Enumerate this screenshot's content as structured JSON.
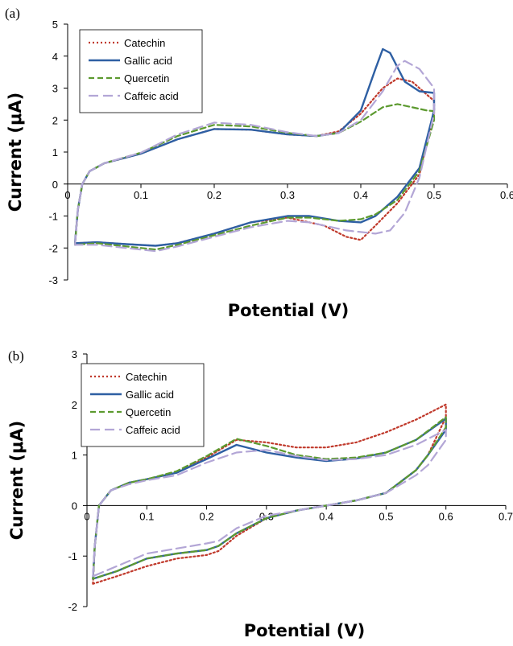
{
  "legend_items": [
    "Catechin",
    "Gallic acid",
    "Quercetin",
    "Caffeic acid"
  ],
  "styles": {
    "Catechin": {
      "color": "#c0392b",
      "dash": "2,3",
      "width": 2.2
    },
    "Gallic acid": {
      "color": "#2e5fa3",
      "dash": "",
      "width": 2.4
    },
    "Quercetin": {
      "color": "#5c9a2f",
      "dash": "7,4",
      "width": 2.2
    },
    "Caffeic acid": {
      "color": "#b3a6d6",
      "dash": "12,6",
      "width": 2.2
    }
  },
  "chart_data": [
    {
      "type": "line",
      "panel_label": "(a)",
      "xlabel": "Potential (V)",
      "ylabel": "Current (μA)",
      "xlim": [
        0,
        0.6
      ],
      "ylim": [
        -3,
        5
      ],
      "x_ticks": [
        "0",
        "0.1",
        "0.2",
        "0.3",
        "0.4",
        "0.5",
        "0.6"
      ],
      "y_ticks": [
        "-3",
        "-2",
        "-1",
        "0",
        "1",
        "2",
        "3",
        "4",
        "5"
      ],
      "legend_position": "top-left",
      "series": [
        {
          "name": "Catechin",
          "points": [
            [
              0.01,
              -1.85
            ],
            [
              0.014,
              -0.8
            ],
            [
              0.02,
              0
            ],
            [
              0.03,
              0.4
            ],
            [
              0.05,
              0.65
            ],
            [
              0.1,
              0.95
            ],
            [
              0.15,
              1.4
            ],
            [
              0.2,
              1.72
            ],
            [
              0.25,
              1.7
            ],
            [
              0.3,
              1.55
            ],
            [
              0.34,
              1.5
            ],
            [
              0.37,
              1.65
            ],
            [
              0.4,
              2.2
            ],
            [
              0.43,
              3.0
            ],
            [
              0.45,
              3.3
            ],
            [
              0.47,
              3.2
            ],
            [
              0.49,
              2.8
            ],
            [
              0.5,
              2.6
            ],
            [
              0.5,
              2.2
            ],
            [
              0.48,
              0.3
            ],
            [
              0.45,
              -0.6
            ],
            [
              0.42,
              -1.3
            ],
            [
              0.4,
              -1.75
            ],
            [
              0.38,
              -1.65
            ],
            [
              0.35,
              -1.3
            ],
            [
              0.3,
              -1.05
            ],
            [
              0.25,
              -1.2
            ],
            [
              0.2,
              -1.55
            ],
            [
              0.15,
              -1.85
            ],
            [
              0.12,
              -1.93
            ],
            [
              0.08,
              -1.88
            ],
            [
              0.04,
              -1.82
            ],
            [
              0.01,
              -1.85
            ]
          ]
        },
        {
          "name": "Gallic acid",
          "points": [
            [
              0.01,
              -1.85
            ],
            [
              0.014,
              -0.8
            ],
            [
              0.02,
              0
            ],
            [
              0.03,
              0.4
            ],
            [
              0.05,
              0.65
            ],
            [
              0.1,
              0.95
            ],
            [
              0.15,
              1.4
            ],
            [
              0.2,
              1.72
            ],
            [
              0.25,
              1.7
            ],
            [
              0.3,
              1.55
            ],
            [
              0.34,
              1.5
            ],
            [
              0.37,
              1.6
            ],
            [
              0.4,
              2.3
            ],
            [
              0.42,
              3.6
            ],
            [
              0.43,
              4.22
            ],
            [
              0.44,
              4.1
            ],
            [
              0.46,
              3.2
            ],
            [
              0.48,
              2.9
            ],
            [
              0.5,
              2.85
            ],
            [
              0.5,
              2.3
            ],
            [
              0.48,
              0.5
            ],
            [
              0.45,
              -0.4
            ],
            [
              0.42,
              -1.0
            ],
            [
              0.4,
              -1.2
            ],
            [
              0.37,
              -1.15
            ],
            [
              0.33,
              -1.0
            ],
            [
              0.3,
              -1.0
            ],
            [
              0.25,
              -1.2
            ],
            [
              0.2,
              -1.55
            ],
            [
              0.15,
              -1.85
            ],
            [
              0.12,
              -1.93
            ],
            [
              0.08,
              -1.88
            ],
            [
              0.04,
              -1.82
            ],
            [
              0.01,
              -1.85
            ]
          ]
        },
        {
          "name": "Quercetin",
          "points": [
            [
              0.01,
              -1.9
            ],
            [
              0.014,
              -0.8
            ],
            [
              0.02,
              0
            ],
            [
              0.03,
              0.4
            ],
            [
              0.05,
              0.65
            ],
            [
              0.1,
              0.98
            ],
            [
              0.15,
              1.5
            ],
            [
              0.2,
              1.85
            ],
            [
              0.25,
              1.8
            ],
            [
              0.3,
              1.6
            ],
            [
              0.34,
              1.5
            ],
            [
              0.37,
              1.6
            ],
            [
              0.4,
              1.95
            ],
            [
              0.43,
              2.4
            ],
            [
              0.45,
              2.5
            ],
            [
              0.47,
              2.4
            ],
            [
              0.49,
              2.3
            ],
            [
              0.5,
              2.28
            ],
            [
              0.5,
              2.0
            ],
            [
              0.48,
              0.4
            ],
            [
              0.45,
              -0.5
            ],
            [
              0.42,
              -0.95
            ],
            [
              0.4,
              -1.1
            ],
            [
              0.37,
              -1.15
            ],
            [
              0.33,
              -1.05
            ],
            [
              0.3,
              -1.05
            ],
            [
              0.25,
              -1.3
            ],
            [
              0.2,
              -1.6
            ],
            [
              0.15,
              -1.9
            ],
            [
              0.12,
              -2.05
            ],
            [
              0.08,
              -1.95
            ],
            [
              0.04,
              -1.85
            ],
            [
              0.01,
              -1.9
            ]
          ]
        },
        {
          "name": "Caffeic acid",
          "points": [
            [
              0.01,
              -1.9
            ],
            [
              0.014,
              -0.8
            ],
            [
              0.02,
              0
            ],
            [
              0.03,
              0.4
            ],
            [
              0.05,
              0.65
            ],
            [
              0.1,
              0.98
            ],
            [
              0.15,
              1.55
            ],
            [
              0.2,
              1.92
            ],
            [
              0.25,
              1.85
            ],
            [
              0.3,
              1.62
            ],
            [
              0.34,
              1.5
            ],
            [
              0.37,
              1.6
            ],
            [
              0.4,
              2.0
            ],
            [
              0.43,
              2.9
            ],
            [
              0.45,
              3.7
            ],
            [
              0.46,
              3.85
            ],
            [
              0.48,
              3.6
            ],
            [
              0.5,
              3.0
            ],
            [
              0.5,
              2.2
            ],
            [
              0.48,
              0.2
            ],
            [
              0.46,
              -0.9
            ],
            [
              0.44,
              -1.45
            ],
            [
              0.42,
              -1.55
            ],
            [
              0.38,
              -1.45
            ],
            [
              0.33,
              -1.2
            ],
            [
              0.3,
              -1.15
            ],
            [
              0.25,
              -1.35
            ],
            [
              0.2,
              -1.65
            ],
            [
              0.15,
              -1.95
            ],
            [
              0.12,
              -2.1
            ],
            [
              0.08,
              -2.0
            ],
            [
              0.04,
              -1.9
            ],
            [
              0.01,
              -1.9
            ]
          ]
        }
      ]
    },
    {
      "type": "line",
      "panel_label": "(b)",
      "xlabel": "Potential (V)",
      "ylabel": "Current (μA)",
      "xlim": [
        0,
        0.7
      ],
      "ylim": [
        -2,
        3
      ],
      "x_ticks": [
        "0",
        "0.1",
        "0.2",
        "0.3",
        "0.4",
        "0.5",
        "0.6",
        "0.7"
      ],
      "y_ticks": [
        "-2",
        "-1",
        "0",
        "1",
        "2",
        "3"
      ],
      "legend_position": "top-left",
      "series": [
        {
          "name": "Catechin",
          "points": [
            [
              0.01,
              -1.55
            ],
            [
              0.013,
              -0.8
            ],
            [
              0.02,
              0
            ],
            [
              0.04,
              0.3
            ],
            [
              0.07,
              0.45
            ],
            [
              0.1,
              0.52
            ],
            [
              0.15,
              0.65
            ],
            [
              0.2,
              0.95
            ],
            [
              0.25,
              1.3
            ],
            [
              0.3,
              1.25
            ],
            [
              0.35,
              1.15
            ],
            [
              0.4,
              1.15
            ],
            [
              0.45,
              1.25
            ],
            [
              0.5,
              1.45
            ],
            [
              0.55,
              1.7
            ],
            [
              0.6,
              2.0
            ],
            [
              0.6,
              1.75
            ],
            [
              0.57,
              1.0
            ],
            [
              0.55,
              0.7
            ],
            [
              0.5,
              0.25
            ],
            [
              0.45,
              0.1
            ],
            [
              0.4,
              0.0
            ],
            [
              0.35,
              -0.1
            ],
            [
              0.3,
              -0.25
            ],
            [
              0.25,
              -0.6
            ],
            [
              0.22,
              -0.9
            ],
            [
              0.2,
              -0.98
            ],
            [
              0.15,
              -1.05
            ],
            [
              0.1,
              -1.2
            ],
            [
              0.05,
              -1.4
            ],
            [
              0.01,
              -1.55
            ]
          ]
        },
        {
          "name": "Gallic acid",
          "points": [
            [
              0.01,
              -1.45
            ],
            [
              0.013,
              -0.8
            ],
            [
              0.02,
              0
            ],
            [
              0.04,
              0.3
            ],
            [
              0.07,
              0.45
            ],
            [
              0.1,
              0.52
            ],
            [
              0.15,
              0.65
            ],
            [
              0.2,
              0.92
            ],
            [
              0.25,
              1.2
            ],
            [
              0.3,
              1.05
            ],
            [
              0.35,
              0.95
            ],
            [
              0.4,
              0.88
            ],
            [
              0.45,
              0.93
            ],
            [
              0.5,
              1.05
            ],
            [
              0.55,
              1.3
            ],
            [
              0.6,
              1.72
            ],
            [
              0.6,
              1.5
            ],
            [
              0.57,
              1.0
            ],
            [
              0.55,
              0.7
            ],
            [
              0.5,
              0.25
            ],
            [
              0.45,
              0.1
            ],
            [
              0.4,
              0.0
            ],
            [
              0.35,
              -0.1
            ],
            [
              0.3,
              -0.25
            ],
            [
              0.25,
              -0.55
            ],
            [
              0.22,
              -0.8
            ],
            [
              0.2,
              -0.88
            ],
            [
              0.15,
              -0.95
            ],
            [
              0.1,
              -1.05
            ],
            [
              0.05,
              -1.3
            ],
            [
              0.01,
              -1.45
            ]
          ]
        },
        {
          "name": "Quercetin",
          "points": [
            [
              0.01,
              -1.45
            ],
            [
              0.013,
              -0.8
            ],
            [
              0.02,
              0
            ],
            [
              0.04,
              0.3
            ],
            [
              0.07,
              0.45
            ],
            [
              0.1,
              0.52
            ],
            [
              0.15,
              0.68
            ],
            [
              0.2,
              0.98
            ],
            [
              0.25,
              1.32
            ],
            [
              0.3,
              1.18
            ],
            [
              0.35,
              1.0
            ],
            [
              0.4,
              0.92
            ],
            [
              0.45,
              0.95
            ],
            [
              0.5,
              1.05
            ],
            [
              0.55,
              1.3
            ],
            [
              0.6,
              1.75
            ],
            [
              0.6,
              1.55
            ],
            [
              0.57,
              1.0
            ],
            [
              0.55,
              0.7
            ],
            [
              0.5,
              0.25
            ],
            [
              0.45,
              0.1
            ],
            [
              0.4,
              0.0
            ],
            [
              0.35,
              -0.1
            ],
            [
              0.3,
              -0.25
            ],
            [
              0.25,
              -0.55
            ],
            [
              0.22,
              -0.8
            ],
            [
              0.2,
              -0.88
            ],
            [
              0.15,
              -0.95
            ],
            [
              0.1,
              -1.05
            ],
            [
              0.05,
              -1.3
            ],
            [
              0.01,
              -1.45
            ]
          ]
        },
        {
          "name": "Caffeic acid",
          "points": [
            [
              0.01,
              -1.4
            ],
            [
              0.013,
              -0.8
            ],
            [
              0.02,
              0
            ],
            [
              0.04,
              0.3
            ],
            [
              0.07,
              0.42
            ],
            [
              0.1,
              0.5
            ],
            [
              0.15,
              0.6
            ],
            [
              0.2,
              0.85
            ],
            [
              0.25,
              1.05
            ],
            [
              0.3,
              1.1
            ],
            [
              0.35,
              0.98
            ],
            [
              0.4,
              0.9
            ],
            [
              0.45,
              0.92
            ],
            [
              0.5,
              1.0
            ],
            [
              0.55,
              1.2
            ],
            [
              0.6,
              1.5
            ],
            [
              0.6,
              1.3
            ],
            [
              0.57,
              0.8
            ],
            [
              0.55,
              0.6
            ],
            [
              0.5,
              0.25
            ],
            [
              0.45,
              0.1
            ],
            [
              0.4,
              0.0
            ],
            [
              0.35,
              -0.1
            ],
            [
              0.3,
              -0.2
            ],
            [
              0.25,
              -0.45
            ],
            [
              0.22,
              -0.7
            ],
            [
              0.2,
              -0.75
            ],
            [
              0.15,
              -0.85
            ],
            [
              0.1,
              -0.95
            ],
            [
              0.05,
              -1.2
            ],
            [
              0.01,
              -1.4
            ]
          ]
        }
      ]
    }
  ]
}
